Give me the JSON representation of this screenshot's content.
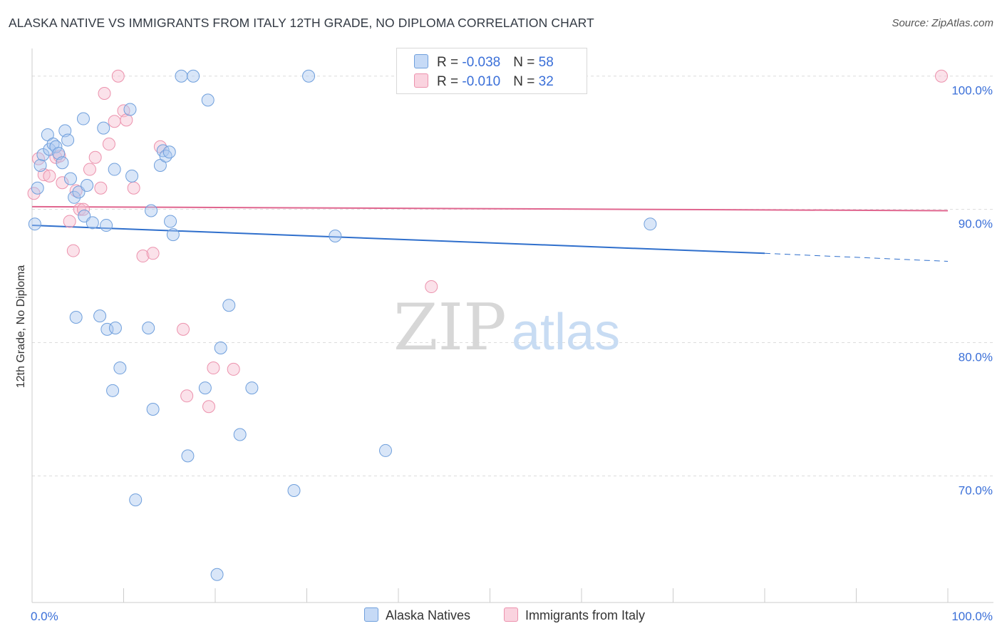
{
  "title": "ALASKA NATIVE VS IMMIGRANTS FROM ITALY 12TH GRADE, NO DIPLOMA CORRELATION CHART",
  "source": "Source: ZipAtlas.com",
  "watermark": {
    "zip": "ZIP",
    "atlas": "atlas"
  },
  "legend": {
    "rows": [
      {
        "r_label": "R = ",
        "r_value": "-0.038",
        "n_label": "N = ",
        "n_value": "58"
      },
      {
        "r_label": "R = ",
        "r_value": "-0.010",
        "n_label": "N = ",
        "n_value": "32"
      }
    ]
  },
  "bottom_legend": [
    "Alaska Natives",
    "Immigrants from Italy"
  ],
  "colors": {
    "blue_fill": "#aac8f0",
    "blue_stroke": "#6f9fdc",
    "blue_line": "#2f6fcc",
    "pink_fill": "#f7bfd0",
    "pink_stroke": "#ec92ad",
    "pink_line": "#e0668f",
    "tick_text": "#3a6fd8"
  },
  "chart_data": {
    "type": "scatter",
    "title": "ALASKA NATIVE VS IMMIGRANTS FROM ITALY 12TH GRADE, NO DIPLOMA CORRELATION CHART",
    "xlabel": "",
    "ylabel": "12th Grade, No Diploma",
    "xlim": [
      0,
      100
    ],
    "ylim": [
      60.5,
      102.5
    ],
    "x_ticks": [
      "0.0%",
      "100.0%"
    ],
    "y_ticks": [
      {
        "value": 100,
        "label": "100.0%"
      },
      {
        "value": 90,
        "label": "90.0%"
      },
      {
        "value": 80,
        "label": "80.0%"
      },
      {
        "value": 70,
        "label": "70.0%"
      }
    ],
    "grid": true,
    "legend_position": "top-center",
    "series": [
      {
        "name": "Alaska Natives",
        "r": -0.038,
        "n": 58,
        "trend": {
          "x0": 0,
          "y0": 88.8,
          "x1": 80,
          "y1": 86.7,
          "dash_to_x": 100,
          "dash_to_y": 86.1
        },
        "points": [
          [
            0.3,
            88.9
          ],
          [
            0.6,
            91.6
          ],
          [
            0.9,
            93.3
          ],
          [
            1.2,
            94.1
          ],
          [
            1.7,
            95.6
          ],
          [
            1.9,
            94.5
          ],
          [
            2.3,
            94.9
          ],
          [
            2.6,
            94.7
          ],
          [
            2.9,
            94.2
          ],
          [
            3.3,
            93.5
          ],
          [
            3.6,
            95.9
          ],
          [
            3.9,
            95.2
          ],
          [
            4.2,
            92.3
          ],
          [
            4.6,
            90.9
          ],
          [
            5.1,
            91.3
          ],
          [
            5.7,
            89.5
          ],
          [
            6.0,
            91.8
          ],
          [
            6.6,
            89.0
          ],
          [
            5.6,
            96.8
          ],
          [
            7.8,
            96.1
          ],
          [
            8.1,
            88.8
          ],
          [
            9.0,
            93.0
          ],
          [
            10.7,
            97.5
          ],
          [
            10.9,
            92.5
          ],
          [
            13.0,
            89.9
          ],
          [
            14.0,
            93.3
          ],
          [
            14.3,
            94.4
          ],
          [
            14.6,
            94.0
          ],
          [
            15.1,
            89.1
          ],
          [
            15.4,
            88.1
          ],
          [
            16.3,
            100.0
          ],
          [
            17.6,
            100.0
          ],
          [
            19.2,
            98.2
          ],
          [
            4.8,
            81.9
          ],
          [
            7.4,
            82.0
          ],
          [
            8.2,
            81.0
          ],
          [
            9.1,
            81.1
          ],
          [
            12.7,
            81.1
          ],
          [
            9.6,
            78.1
          ],
          [
            8.8,
            76.4
          ],
          [
            13.2,
            75.0
          ],
          [
            18.9,
            76.6
          ],
          [
            20.6,
            79.6
          ],
          [
            21.5,
            82.8
          ],
          [
            24.0,
            76.6
          ],
          [
            22.7,
            73.1
          ],
          [
            17.0,
            71.5
          ],
          [
            11.3,
            68.2
          ],
          [
            28.6,
            68.9
          ],
          [
            38.6,
            71.9
          ],
          [
            20.2,
            62.6
          ],
          [
            33.1,
            88.0
          ],
          [
            30.2,
            100.0
          ],
          [
            42.0,
            100.0
          ],
          [
            44.0,
            100.0
          ],
          [
            46.0,
            100.0
          ],
          [
            67.5,
            88.9
          ],
          [
            15.0,
            94.3
          ]
        ]
      },
      {
        "name": "Immigrants from Italy",
        "r": -0.01,
        "n": 32,
        "trend": {
          "x0": 0,
          "y0": 90.2,
          "x1": 100,
          "y1": 89.9
        },
        "points": [
          [
            0.2,
            91.2
          ],
          [
            0.7,
            93.8
          ],
          [
            1.3,
            92.6
          ],
          [
            1.9,
            92.5
          ],
          [
            2.6,
            93.9
          ],
          [
            3.0,
            94.0
          ],
          [
            3.3,
            92.0
          ],
          [
            4.1,
            89.1
          ],
          [
            4.5,
            86.9
          ],
          [
            4.8,
            91.4
          ],
          [
            5.2,
            90.0
          ],
          [
            5.6,
            90.0
          ],
          [
            6.3,
            93.0
          ],
          [
            6.9,
            93.9
          ],
          [
            7.5,
            91.6
          ],
          [
            7.9,
            98.7
          ],
          [
            8.4,
            94.9
          ],
          [
            9.0,
            96.6
          ],
          [
            9.4,
            100.0
          ],
          [
            10.0,
            97.4
          ],
          [
            10.3,
            96.7
          ],
          [
            11.1,
            91.6
          ],
          [
            12.1,
            86.5
          ],
          [
            13.2,
            86.7
          ],
          [
            14.0,
            94.7
          ],
          [
            16.5,
            81.0
          ],
          [
            16.9,
            76.0
          ],
          [
            19.3,
            75.2
          ],
          [
            19.8,
            78.1
          ],
          [
            22.0,
            78.0
          ],
          [
            43.6,
            84.2
          ],
          [
            99.3,
            100.0
          ]
        ]
      }
    ]
  }
}
